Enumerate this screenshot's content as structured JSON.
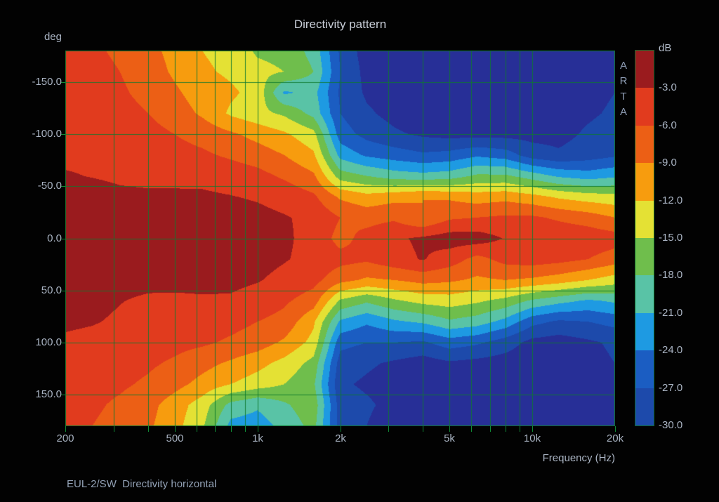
{
  "title": "Directivity pattern",
  "caption": "EUL-2/SW  Directivity horizontal",
  "watermark": {
    "letters": [
      "A",
      "R",
      "T",
      "A"
    ]
  },
  "axes": {
    "grid_color": "#0d7a2f",
    "y": {
      "unit_label": "deg",
      "min_deg": -180,
      "max_deg": 180,
      "grid_step_deg": 50,
      "ticks": [
        {
          "v": -150,
          "label": "-150.0"
        },
        {
          "v": -100,
          "label": "-100.0"
        },
        {
          "v": -50,
          "label": "-50.0"
        },
        {
          "v": 0,
          "label": "0.0"
        },
        {
          "v": 50,
          "label": "50.0"
        },
        {
          "v": 100,
          "label": "100.0"
        },
        {
          "v": 150,
          "label": "150.0"
        }
      ]
    },
    "x": {
      "label": "Frequency (Hz)",
      "scale": "log",
      "min_hz": 200,
      "max_hz": 20000,
      "major_ticks": [
        {
          "v": 200,
          "label": "200"
        },
        {
          "v": 500,
          "label": "500"
        },
        {
          "v": 1000,
          "label": "1k"
        },
        {
          "v": 2000,
          "label": "2k"
        },
        {
          "v": 5000,
          "label": "5k"
        },
        {
          "v": 10000,
          "label": "10k"
        },
        {
          "v": 20000,
          "label": "20k"
        }
      ],
      "grid_hz": [
        300,
        400,
        500,
        600,
        700,
        800,
        900,
        1000,
        2000,
        3000,
        4000,
        5000,
        6000,
        7000,
        8000,
        9000,
        10000,
        20000
      ]
    }
  },
  "colorbar": {
    "title": "dB",
    "band_step_db": 3,
    "labels": [
      "-3.0",
      "-6.0",
      "-9.0",
      "-12.0",
      "-15.0",
      "-18.0",
      "-21.0",
      "-24.0",
      "-27.0",
      "-30.0"
    ],
    "band_colors": [
      "#9a1b1e",
      "#e13b1e",
      "#ec5f15",
      "#f79c0e",
      "#e4e134",
      "#6fbe4c",
      "#59c3a6",
      "#1e9ae2",
      "#1b5dc2",
      "#1d4aab"
    ],
    "below_scale_color": "#272f97"
  },
  "chart_data": {
    "type": "heatmap",
    "title": "Directivity pattern",
    "xlabel": "Frequency (Hz)",
    "ylabel": "deg",
    "zlabel": "dB",
    "x_scale": "log",
    "x_range_hz": [
      200,
      20000
    ],
    "y_range_deg": [
      -180,
      180
    ],
    "z_levels_db": [
      0,
      -3,
      -6,
      -9,
      -12,
      -15,
      -18,
      -21,
      -24,
      -27,
      -30
    ],
    "x_frequencies_hz": [
      200,
      250,
      315,
      400,
      500,
      630,
      800,
      1000,
      1250,
      1600,
      2000,
      2500,
      3150,
      4000,
      5000,
      6300,
      8000,
      10000,
      12500,
      16000,
      20000
    ],
    "y_angles_deg": [
      -180,
      -160,
      -140,
      -120,
      -100,
      -80,
      -60,
      -40,
      -20,
      0,
      20,
      40,
      60,
      80,
      100,
      120,
      140,
      160,
      180
    ],
    "z_db": [
      [
        -5.0,
        -5.5,
        -6.5,
        -8.0,
        -10.0,
        -12.0,
        -13.0,
        -15.5,
        -16.0,
        -19.0,
        -27.5,
        -31.5,
        -32.0,
        -33.0,
        -33.0,
        -33.0,
        -33.0,
        -33.0,
        -33.0,
        -32.0,
        -31.0
      ],
      [
        -4.5,
        -5.0,
        -6.0,
        -7.5,
        -9.5,
        -11.5,
        -12.5,
        -14.0,
        -15.0,
        -18.0,
        -27.0,
        -31.0,
        -32.0,
        -33.0,
        -33.0,
        -33.0,
        -33.0,
        -33.0,
        -33.0,
        -31.5,
        -30.5
      ],
      [
        -4.0,
        -4.5,
        -5.5,
        -7.0,
        -8.5,
        -10.5,
        -11.5,
        -13.0,
        -21.5,
        -20.0,
        -27.5,
        -30.5,
        -31.5,
        -32.5,
        -32.5,
        -33.0,
        -32.5,
        -32.0,
        -32.0,
        -31.0,
        -30.0
      ],
      [
        -4.0,
        -4.2,
        -4.8,
        -6.0,
        -7.5,
        -9.5,
        -12.5,
        -14.0,
        -15.5,
        -19.0,
        -27.0,
        -29.5,
        -31.0,
        -32.0,
        -32.0,
        -32.0,
        -32.0,
        -31.5,
        -31.5,
        -30.5,
        -29.5
      ],
      [
        -4.0,
        -4.0,
        -4.3,
        -5.0,
        -6.0,
        -7.0,
        -8.5,
        -10.0,
        -11.5,
        -14.0,
        -25.5,
        -28.0,
        -29.5,
        -30.5,
        -31.0,
        -31.0,
        -31.0,
        -31.0,
        -31.0,
        -29.5,
        -28.5
      ],
      [
        -3.5,
        -3.5,
        -3.8,
        -4.2,
        -5.0,
        -5.5,
        -6.5,
        -7.5,
        -9.0,
        -11.5,
        -22.0,
        -24.5,
        -25.5,
        -26.5,
        -26.0,
        -24.5,
        -25.5,
        -28.5,
        -29.5,
        -28.5,
        -27.5
      ],
      [
        -2.8,
        -3.1,
        -3.4,
        -3.6,
        -3.6,
        -3.7,
        -4.2,
        -5.0,
        -6.5,
        -8.5,
        -16.5,
        -18.0,
        -19.5,
        -20.0,
        -19.5,
        -17.5,
        -17.5,
        -19.5,
        -21.5,
        -22.5,
        -21.5
      ],
      [
        -1.8,
        -2.0,
        -2.5,
        -2.6,
        -2.6,
        -2.6,
        -2.9,
        -3.3,
        -4.0,
        -5.5,
        -9.5,
        -11.0,
        -10.0,
        -9.0,
        -9.5,
        -10.5,
        -10.0,
        -11.0,
        -12.5,
        -13.5,
        -14.0
      ],
      [
        -1.2,
        -1.3,
        -1.9,
        -1.6,
        -1.5,
        -1.5,
        -1.8,
        -2.2,
        -2.8,
        -3.6,
        -6.0,
        -7.0,
        -6.5,
        -9.0,
        -6.5,
        -6.0,
        -5.5,
        -5.5,
        -6.5,
        -7.5,
        -9.0
      ],
      [
        -1.0,
        -1.0,
        -1.5,
        -1.2,
        -1.0,
        -1.0,
        -1.0,
        -1.5,
        -2.5,
        -4.0,
        -7.0,
        -5.0,
        -3.5,
        -2.5,
        -1.5,
        -1.5,
        -3.2,
        -3.2,
        -3.6,
        -4.0,
        -4.6
      ],
      [
        -1.0,
        -1.1,
        -1.8,
        -1.5,
        -1.2,
        -1.2,
        -1.5,
        -2.0,
        -2.8,
        -3.8,
        -5.0,
        -5.5,
        -4.0,
        -2.8,
        -4.5,
        -7.0,
        -5.0,
        -4.5,
        -5.0,
        -6.0,
        -7.5
      ],
      [
        -1.5,
        -1.6,
        -2.2,
        -2.3,
        -2.1,
        -2.1,
        -2.3,
        -2.8,
        -3.8,
        -5.0,
        -8.0,
        -9.5,
        -9.0,
        -8.0,
        -8.5,
        -9.5,
        -9.0,
        -9.5,
        -10.5,
        -12.0,
        -13.5
      ],
      [
        -2.0,
        -2.2,
        -2.9,
        -3.4,
        -3.6,
        -3.4,
        -3.4,
        -4.2,
        -5.5,
        -7.5,
        -15.5,
        -17.5,
        -15.5,
        -14.0,
        -13.5,
        -14.5,
        -16.0,
        -18.5,
        -20.0,
        -21.5,
        -20.5
      ],
      [
        -2.5,
        -2.8,
        -3.4,
        -4.0,
        -4.2,
        -4.5,
        -5.0,
        -6.0,
        -7.0,
        -11.5,
        -21.5,
        -23.5,
        -21.5,
        -20.5,
        -18.5,
        -19.5,
        -22.0,
        -26.0,
        -27.5,
        -27.0,
        -26.0
      ],
      [
        -3.5,
        -3.8,
        -4.2,
        -4.5,
        -5.0,
        -5.5,
        -6.5,
        -7.5,
        -9.5,
        -13.0,
        -26.0,
        -27.0,
        -27.0,
        -27.5,
        -25.5,
        -26.5,
        -28.5,
        -31.0,
        -31.5,
        -30.5,
        -29.5
      ],
      [
        -4.0,
        -4.2,
        -4.8,
        -5.5,
        -6.5,
        -8.0,
        -9.5,
        -11.0,
        -13.0,
        -16.0,
        -28.5,
        -29.5,
        -30.5,
        -31.5,
        -30.5,
        -31.0,
        -31.5,
        -32.0,
        -32.0,
        -31.0,
        -30.0
      ],
      [
        -4.5,
        -5.0,
        -5.5,
        -6.5,
        -8.0,
        -10.0,
        -12.0,
        -13.5,
        -15.0,
        -17.5,
        -29.5,
        -30.5,
        -31.5,
        -32.5,
        -32.0,
        -32.0,
        -32.0,
        -32.5,
        -32.5,
        -31.5,
        -30.5
      ],
      [
        -5.0,
        -5.5,
        -6.5,
        -8.0,
        -10.5,
        -13.5,
        -19.0,
        -20.5,
        -18.5,
        -16.0,
        -28.5,
        -29.5,
        -31.0,
        -32.0,
        -31.5,
        -31.5,
        -32.0,
        -32.0,
        -32.0,
        -31.0,
        -30.0
      ],
      [
        -5.5,
        -6.0,
        -7.0,
        -8.5,
        -11.0,
        -14.5,
        -22.0,
        -22.5,
        -20.0,
        -17.0,
        -28.5,
        -30.0,
        -32.0,
        -32.5,
        -32.0,
        -32.0,
        -32.5,
        -32.5,
        -32.5,
        -31.5,
        -30.5
      ]
    ]
  }
}
